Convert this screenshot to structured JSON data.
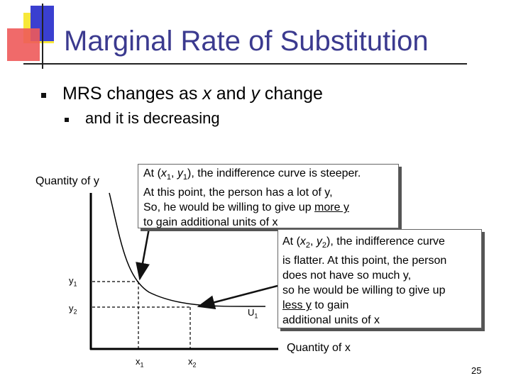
{
  "slide": {
    "title": "Marginal Rate of Substitution",
    "bullet_main": "MRS changes as x and y change",
    "bullet_main_parts": [
      "MRS changes as ",
      "x",
      " and ",
      "y",
      " change"
    ],
    "bullet_sub": "and it is decreasing",
    "page_number": "25"
  },
  "graph": {
    "y_axis_label": "Quantity of y",
    "x_axis_label": "Quantity of x",
    "y_ticks": [
      {
        "main": "y",
        "sub": "1"
      },
      {
        "main": "y",
        "sub": "2"
      }
    ],
    "x_ticks": [
      {
        "main": "x",
        "sub": "1"
      },
      {
        "main": "x",
        "sub": "2"
      }
    ],
    "curve_label": {
      "main": "U",
      "sub": "1"
    }
  },
  "callout1": {
    "p1_pre": "At (",
    "p1_x": "x",
    "p1_x_sub": "1",
    "p1_sep": ", ",
    "p1_y": "y",
    "p1_y_sub": "1",
    "p1_post": "), the indifference curve is steeper.",
    "line2": "At this point, the person has a lot of y,",
    "line3_pre": "So, he would be willing to give up ",
    "line3_u": "more y",
    "line4": " to gain additional units of x"
  },
  "callout2": {
    "p1_pre": "At (",
    "p1_x": "x",
    "p1_x_sub": "2",
    "p1_sep": ", ",
    "p1_y": "y",
    "p1_y_sub": "2",
    "p1_post": "), the indifference curve",
    "line2": "is flatter.  At this point, the person",
    "line3": "does not have so much y,",
    "line4": "so he would be willing to give up",
    "line5_u": "less y",
    "line5_post": " to gain",
    "line6": "additional units of x"
  }
}
